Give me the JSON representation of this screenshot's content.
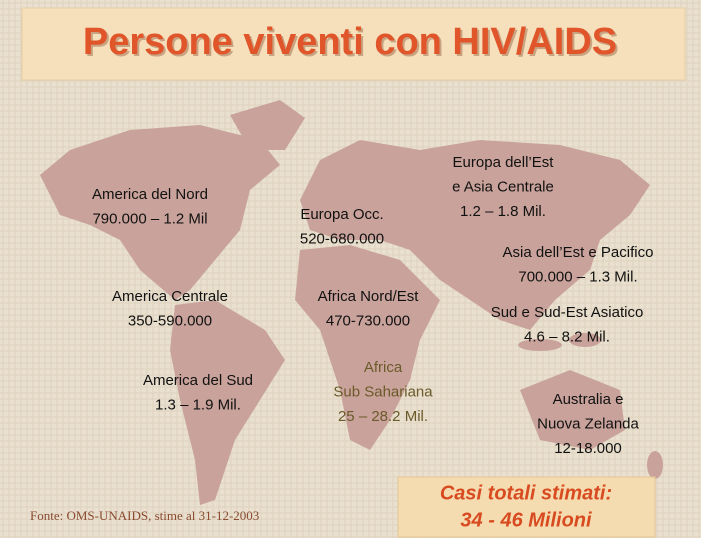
{
  "title": "Persone viventi con HIV/AIDS",
  "regions": [
    {
      "lines": [
        "America del Nord",
        "790.000 – 1.2 Mil"
      ]
    },
    {
      "lines": [
        "Europa Occ.",
        "520-680.000"
      ]
    },
    {
      "lines": [
        "Europa dell’Est",
        "e Asia Centrale",
        "1.2 – 1.8 Mil."
      ]
    },
    {
      "lines": [
        "Asia dell’Est e Pacifico",
        "700.000 – 1.3 Mil."
      ]
    },
    {
      "lines": [
        "America Centrale",
        "350-590.000"
      ]
    },
    {
      "lines": [
        "Africa Nord/Est",
        "470-730.000"
      ]
    },
    {
      "lines": [
        "Sud e Sud-Est Asiatico",
        "4.6 – 8.2 Mil."
      ]
    },
    {
      "lines": [
        "America del Sud",
        "1.3 – 1.9 Mil."
      ]
    },
    {
      "lines": [
        "Africa",
        "Sub Sahariana",
        "25 – 28.2 Mil."
      ]
    },
    {
      "lines": [
        "Australia e",
        "Nuova Zelanda",
        "12-18.000"
      ]
    }
  ],
  "source": "Fonte: OMS-UNAIDS, stime al 31-12-2003",
  "total": {
    "lines": [
      "Casi totali stimati:",
      "34 - 46 Milioni"
    ]
  }
}
